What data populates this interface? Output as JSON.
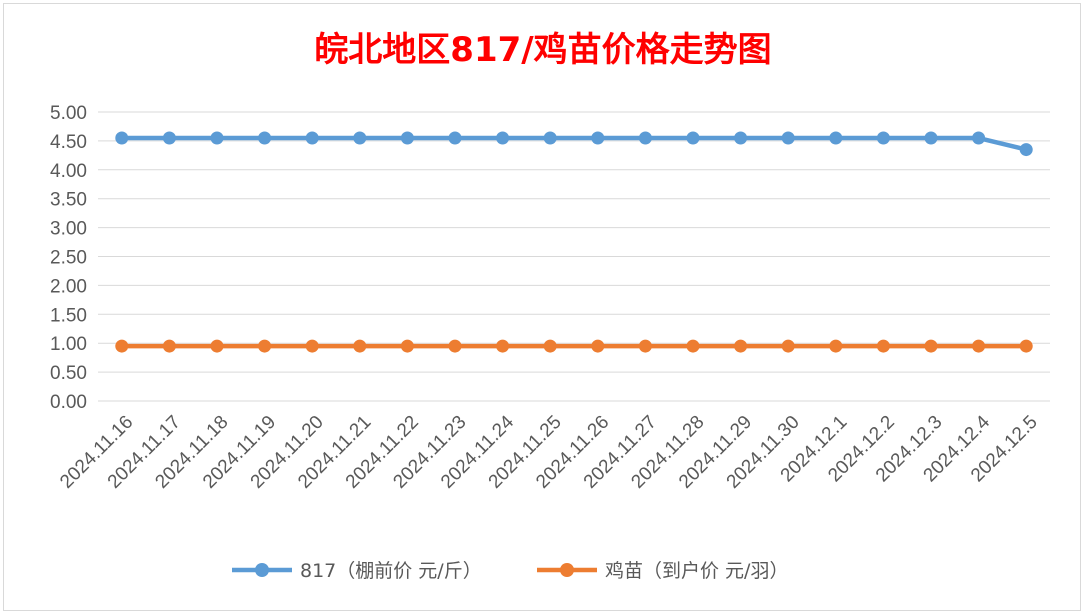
{
  "chart_data": {
    "type": "line",
    "title": "皖北地区817/鸡苗价格走势图",
    "categories": [
      "2024.11.16",
      "2024.11.17",
      "2024.11.18",
      "2024.11.19",
      "2024.11.20",
      "2024.11.21",
      "2024.11.22",
      "2024.11.23",
      "2024.11.24",
      "2024.11.25",
      "2024.11.26",
      "2024.11.27",
      "2024.11.28",
      "2024.11.29",
      "2024.11.30",
      "2024.12.1",
      "2024.12.2",
      "2024.12.3",
      "2024.12.4",
      "2024.12.5"
    ],
    "series": [
      {
        "name": "817（棚前价 元/斤）",
        "color": "#5b9bd5",
        "values": [
          4.55,
          4.55,
          4.55,
          4.55,
          4.55,
          4.55,
          4.55,
          4.55,
          4.55,
          4.55,
          4.55,
          4.55,
          4.55,
          4.55,
          4.55,
          4.55,
          4.55,
          4.55,
          4.55,
          4.35
        ]
      },
      {
        "name": "鸡苗（到户价 元/羽）",
        "color": "#ed7d31",
        "values": [
          0.95,
          0.95,
          0.95,
          0.95,
          0.95,
          0.95,
          0.95,
          0.95,
          0.95,
          0.95,
          0.95,
          0.95,
          0.95,
          0.95,
          0.95,
          0.95,
          0.95,
          0.95,
          0.95,
          0.95
        ]
      }
    ],
    "ylim": [
      0,
      5
    ],
    "yticks": [
      "0.00",
      "0.50",
      "1.00",
      "1.50",
      "2.00",
      "2.50",
      "3.00",
      "3.50",
      "4.00",
      "4.50",
      "5.00"
    ],
    "grid": true,
    "legend": "bottom",
    "title_color": "#ff0000",
    "grid_color": "#d9d9d9",
    "label_color": "#595959"
  }
}
